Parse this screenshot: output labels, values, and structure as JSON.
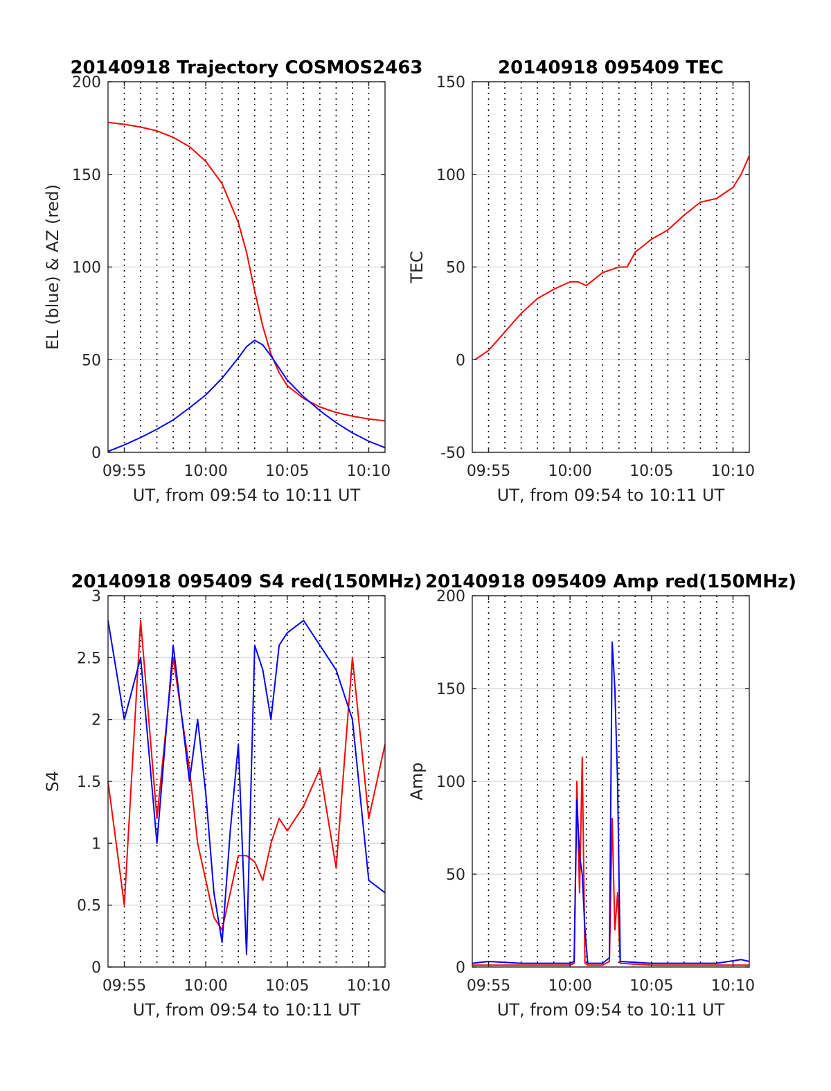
{
  "chart_data": [
    {
      "type": "line",
      "title": "20140918 Trajectory COSMOS2463",
      "xlabel": "UT, from 09:54 to 10:11 UT",
      "ylabel": "EL (blue) & AZ (red)",
      "xlim": [
        "09:54",
        "10:11"
      ],
      "ylim": [
        0,
        200
      ],
      "xticks": [
        "09:55",
        "10:00",
        "10:05",
        "10:10"
      ],
      "yticks": [
        "0",
        "50",
        "100",
        "150",
        "200"
      ],
      "grid": true,
      "series": [
        {
          "color": "#ff0000",
          "x": [
            "09:54",
            "09:55",
            "09:56",
            "09:57",
            "09:58",
            "09:59",
            "10:00",
            "10:01",
            "10:02",
            "10:02:30",
            "10:03",
            "10:03:30",
            "10:04",
            "10:04:30",
            "10:05",
            "10:06",
            "10:07",
            "10:08",
            "10:09",
            "10:10",
            "10:11"
          ],
          "values": [
            178,
            177,
            175.5,
            173.5,
            170,
            165,
            157,
            145,
            124,
            108,
            87,
            68,
            53,
            43,
            36,
            29,
            24.5,
            21.5,
            19.5,
            18,
            17
          ]
        },
        {
          "color": "#0000ff",
          "x": [
            "09:54",
            "09:55",
            "09:56",
            "09:57",
            "09:58",
            "09:59",
            "10:00",
            "10:01",
            "10:02",
            "10:02:30",
            "10:03",
            "10:03:30",
            "10:04",
            "10:04:30",
            "10:05",
            "10:06",
            "10:07",
            "10:08",
            "10:09",
            "10:10",
            "10:11"
          ],
          "values": [
            0.5,
            4,
            8,
            12.5,
            17.5,
            24,
            31,
            40,
            51,
            57,
            60.5,
            58,
            52,
            45.5,
            39,
            30,
            22.5,
            16,
            10.5,
            6,
            2.5
          ]
        }
      ]
    },
    {
      "type": "line",
      "title": "20140918 095409 TEC",
      "xlabel": "UT, from 09:54 to 10:11 UT",
      "ylabel": "TEC",
      "xlim": [
        "09:54",
        "10:11"
      ],
      "ylim": [
        -50,
        150
      ],
      "xticks": [
        "09:55",
        "10:00",
        "10:05",
        "10:10"
      ],
      "yticks": [
        "-50",
        "0",
        "50",
        "100",
        "150"
      ],
      "grid": true,
      "series": [
        {
          "color": "#ff0000",
          "x": [
            "09:54:10",
            "09:55",
            "09:56",
            "09:57",
            "09:58",
            "09:59",
            "10:00",
            "10:00:30",
            "10:01",
            "10:02",
            "10:03",
            "10:03:30",
            "10:04",
            "10:05",
            "10:06",
            "10:07",
            "10:08",
            "10:09",
            "10:10",
            "10:10:30",
            "10:11"
          ],
          "values": [
            0,
            5,
            15,
            25,
            33,
            38,
            42,
            42,
            40,
            47,
            50,
            50,
            58,
            65,
            70,
            78,
            85,
            87,
            93,
            100,
            110
          ]
        }
      ]
    },
    {
      "type": "line",
      "title": "20140918 095409 S4 red(150MHz)",
      "xlabel": "UT, from 09:54 to 10:11 UT",
      "ylabel": "S4",
      "xlim": [
        "09:54",
        "10:11"
      ],
      "ylim": [
        0,
        3
      ],
      "xticks": [
        "09:55",
        "10:00",
        "10:05",
        "10:10"
      ],
      "yticks": [
        "0",
        "0.5",
        "1",
        "1.5",
        "2",
        "2.5",
        "3"
      ],
      "grid": true,
      "series": [
        {
          "color": "#ff0000",
          "x": [
            "09:54",
            "09:55",
            "09:56",
            "09:57",
            "09:58",
            "09:59",
            "09:59:30",
            "10:00",
            "10:00:30",
            "10:01",
            "10:01:30",
            "10:02",
            "10:02:30",
            "10:03",
            "10:03:30",
            "10:04",
            "10:04:30",
            "10:05",
            "10:06",
            "10:07",
            "10:08",
            "10:09",
            "10:10",
            "10:11"
          ],
          "values": [
            1.5,
            0.5,
            2.8,
            1.2,
            2.5,
            1.6,
            1.0,
            0.7,
            0.4,
            0.3,
            0.6,
            0.9,
            0.9,
            0.85,
            0.7,
            1.0,
            1.2,
            1.1,
            1.3,
            1.6,
            0.8,
            2.5,
            1.2,
            1.8
          ]
        },
        {
          "color": "#0000ff",
          "x": [
            "09:54",
            "09:55",
            "09:56",
            "09:57",
            "09:58",
            "09:59",
            "09:59:30",
            "10:00",
            "10:00:30",
            "10:01",
            "10:01:30",
            "10:02",
            "10:02:30",
            "10:03",
            "10:03:30",
            "10:04",
            "10:04:30",
            "10:05",
            "10:06",
            "10:07",
            "10:08",
            "10:09",
            "10:10",
            "10:11"
          ],
          "values": [
            2.8,
            2.0,
            2.5,
            1.0,
            2.6,
            1.5,
            2.0,
            1.4,
            0.6,
            0.2,
            1.1,
            1.8,
            0.1,
            2.6,
            2.4,
            2.0,
            2.6,
            2.7,
            2.8,
            2.6,
            2.4,
            2.0,
            0.7,
            0.6
          ]
        }
      ]
    },
    {
      "type": "line",
      "title": "20140918 095409 Amp red(150MHz)",
      "xlabel": "UT, from 09:54 to 10:11 UT",
      "ylabel": "Amp",
      "xlim": [
        "09:54",
        "10:11"
      ],
      "ylim": [
        0,
        200
      ],
      "xticks": [
        "09:55",
        "10:00",
        "10:05",
        "10:10"
      ],
      "yticks": [
        "0",
        "50",
        "100",
        "150",
        "200"
      ],
      "grid": true,
      "series": [
        {
          "color": "#ff0000",
          "x": [
            "09:54",
            "09:58",
            "10:00",
            "10:00:15",
            "10:00:25",
            "10:00:35",
            "10:00:45",
            "10:00:55",
            "10:01:05",
            "10:02",
            "10:02:25",
            "10:02:35",
            "10:02:45",
            "10:02:55",
            "10:03:05",
            "10:05",
            "10:08",
            "10:11"
          ],
          "values": [
            1,
            1,
            1,
            2,
            100,
            40,
            113,
            2,
            1,
            1,
            3,
            80,
            20,
            40,
            2,
            1,
            1,
            1
          ]
        },
        {
          "color": "#0000ff",
          "x": [
            "09:54",
            "09:55",
            "09:57",
            "09:59",
            "10:00",
            "10:00:15",
            "10:00:25",
            "10:00:35",
            "10:00:45",
            "10:00:55",
            "10:01:05",
            "10:02",
            "10:02:25",
            "10:02:35",
            "10:02:45",
            "10:02:55",
            "10:03:05",
            "10:05",
            "10:07",
            "10:09",
            "10:10:30",
            "10:11"
          ],
          "values": [
            2,
            3,
            2,
            2,
            2,
            3,
            90,
            60,
            50,
            20,
            2,
            2,
            5,
            175,
            150,
            100,
            3,
            2,
            2,
            2,
            4,
            3
          ]
        }
      ]
    }
  ]
}
